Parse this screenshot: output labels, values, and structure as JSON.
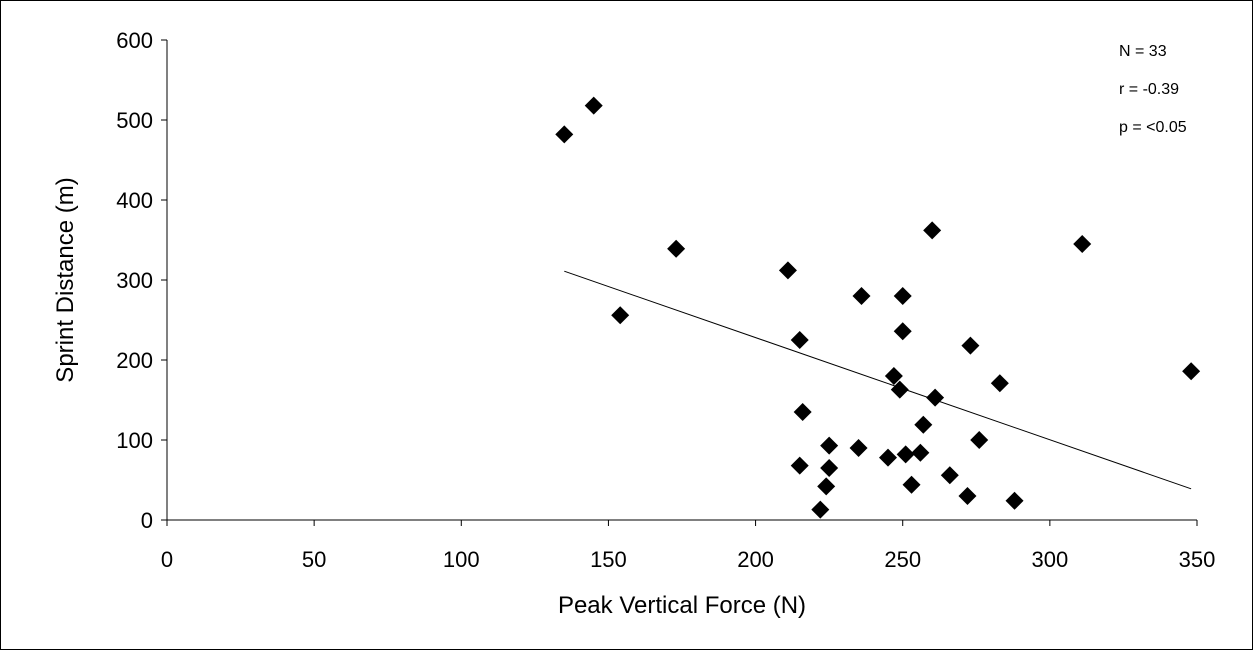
{
  "chart_data": {
    "type": "scatter",
    "title": "",
    "xlabel": "Peak Vertical Force (N)",
    "ylabel": "Sprint Distance (m)",
    "xlim": [
      0,
      350
    ],
    "ylim": [
      0,
      600
    ],
    "xticks": [
      0,
      50,
      100,
      150,
      200,
      250,
      300,
      350
    ],
    "yticks": [
      0,
      100,
      200,
      300,
      400,
      500,
      600
    ],
    "grid": false,
    "marker": "diamond",
    "colors": {
      "marker": "#000000",
      "trendline": "#000000"
    },
    "annotations": [
      "N = 33",
      "r = -0.39",
      "p = <0.05"
    ],
    "points": [
      [
        135,
        482
      ],
      [
        145,
        518
      ],
      [
        154,
        256
      ],
      [
        173,
        339
      ],
      [
        211,
        312
      ],
      [
        215,
        225
      ],
      [
        216,
        135
      ],
      [
        215,
        68
      ],
      [
        222,
        13
      ],
      [
        224,
        42
      ],
      [
        225,
        93
      ],
      [
        225,
        65
      ],
      [
        235,
        90
      ],
      [
        236,
        280
      ],
      [
        245,
        78
      ],
      [
        247,
        180
      ],
      [
        249,
        163
      ],
      [
        250,
        280
      ],
      [
        250,
        236
      ],
      [
        251,
        82
      ],
      [
        253,
        44
      ],
      [
        256,
        84
      ],
      [
        257,
        119
      ],
      [
        260,
        362
      ],
      [
        261,
        153
      ],
      [
        266,
        56
      ],
      [
        272,
        30
      ],
      [
        273,
        218
      ],
      [
        276,
        100
      ],
      [
        283,
        171
      ],
      [
        288,
        24
      ],
      [
        311,
        345
      ],
      [
        348,
        186
      ]
    ],
    "trendline": {
      "x": [
        135,
        348
      ],
      "y": [
        311,
        39
      ]
    }
  }
}
